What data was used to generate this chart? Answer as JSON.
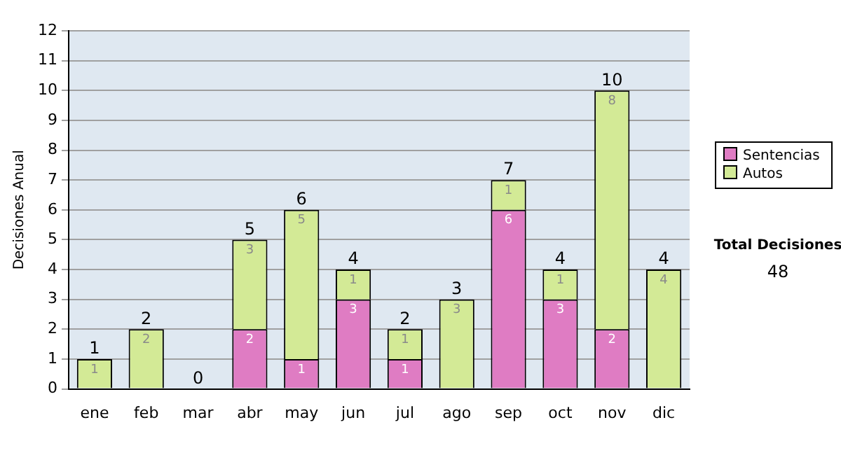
{
  "chart_data": {
    "type": "bar",
    "stacked": true,
    "ylabel": "Decisiones Anual",
    "categories": [
      "ene",
      "feb",
      "mar",
      "abr",
      "may",
      "jun",
      "jul",
      "ago",
      "sep",
      "oct",
      "nov",
      "dic"
    ],
    "series": [
      {
        "name": "Sentencias",
        "color": "#df7cc3",
        "values": [
          0,
          0,
          0,
          2,
          1,
          3,
          1,
          0,
          6,
          3,
          2,
          0
        ],
        "value_labels": [
          null,
          null,
          null,
          "2",
          "1",
          "3",
          "1",
          null,
          "6",
          "3",
          "2",
          null
        ]
      },
      {
        "name": "Autos",
        "color": "#d3ea96",
        "values": [
          1,
          2,
          0,
          3,
          5,
          1,
          1,
          3,
          1,
          1,
          8,
          4
        ],
        "value_labels": [
          "1",
          "2",
          null,
          "3",
          "5",
          "1",
          "1",
          "3",
          "1",
          "1",
          "8",
          "4"
        ]
      }
    ],
    "totals": [
      "1",
      "2",
      "0",
      "5",
      "6",
      "4",
      "2",
      "3",
      "7",
      "4",
      "10",
      "4"
    ],
    "ylim": [
      0,
      12
    ],
    "yticks": [
      0,
      1,
      2,
      3,
      4,
      5,
      6,
      7,
      8,
      9,
      10,
      11,
      12
    ],
    "grid": "y",
    "legend": "right",
    "annotations": [
      "Total Decisiones",
      "48"
    ]
  }
}
